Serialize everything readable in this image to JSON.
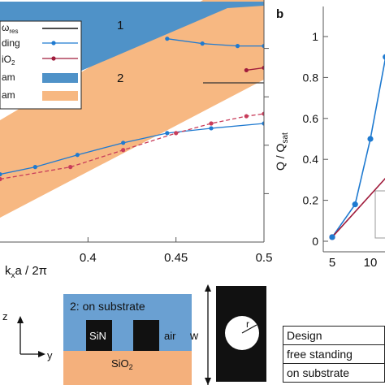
{
  "panel_a": {
    "region_labels": [
      "1",
      "2"
    ],
    "legend_fragments": [
      "ω",
      "res",
      "ding",
      "iO",
      "2",
      "am",
      "am"
    ],
    "xlabel": {
      "k": "k",
      "sub": "x",
      "rest": "a / 2π"
    }
  },
  "panel_b": {
    "label": "b",
    "ylabel": {
      "q": "Q / Q",
      "sub": "sat"
    }
  },
  "inset": {
    "title": "2: on substrate",
    "sin": "SiN",
    "air": "air",
    "sio2": "SiO",
    "sio2_sub": "2",
    "axis_z": "z",
    "axis_y": "y",
    "w": "w",
    "r": "r"
  },
  "table": {
    "rows": [
      "Design",
      "free standing",
      "on substrate"
    ]
  },
  "colors": {
    "band_blue": "#4f92c8",
    "band_orange": "#f7b882",
    "blue_series": "#1f7ad0",
    "red_series": "#a01c3c",
    "pink_series": "#c83c5a",
    "substrate_orange": "#f4b07c",
    "inset_blue": "#6aa0d2"
  },
  "chart_data": [
    {
      "type": "line",
      "panel": "a",
      "x_ticks": [
        "0.4",
        "0.45",
        "0.5"
      ],
      "xlim": [
        0.35,
        0.5
      ],
      "ylim": [
        0,
        1
      ],
      "series": [
        {
          "x": [
            0.35,
            0.37,
            0.394,
            0.42,
            0.445,
            0.47,
            0.5
          ],
          "y": [
            0.28,
            0.31,
            0.36,
            0.41,
            0.45,
            0.47,
            0.49
          ]
        },
        {
          "x": [
            0.445,
            0.465,
            0.485,
            0.5
          ],
          "y": [
            0.84,
            0.82,
            0.81,
            0.81
          ]
        },
        {
          "x": [
            0.35,
            0.39,
            0.42,
            0.45,
            0.47,
            0.49,
            0.5
          ],
          "y": [
            0.26,
            0.31,
            0.38,
            0.45,
            0.49,
            0.52,
            0.53
          ]
        },
        {
          "x": [
            0.49,
            0.5
          ],
          "y": [
            0.71,
            0.72
          ]
        }
      ]
    },
    {
      "type": "line",
      "panel": "b",
      "y_ticks": [
        "0",
        "0.2",
        "0.4",
        "0.6",
        "0.8",
        "1"
      ],
      "x_ticks": [
        "5",
        "10"
      ],
      "ylim": [
        0,
        1.05
      ],
      "series": [
        {
          "x": [
            5,
            8,
            10,
            12
          ],
          "y": [
            0.02,
            0.18,
            0.5,
            0.9
          ]
        },
        {
          "x": [
            5,
            13
          ],
          "y": [
            0.02,
            0.35
          ]
        }
      ]
    }
  ]
}
